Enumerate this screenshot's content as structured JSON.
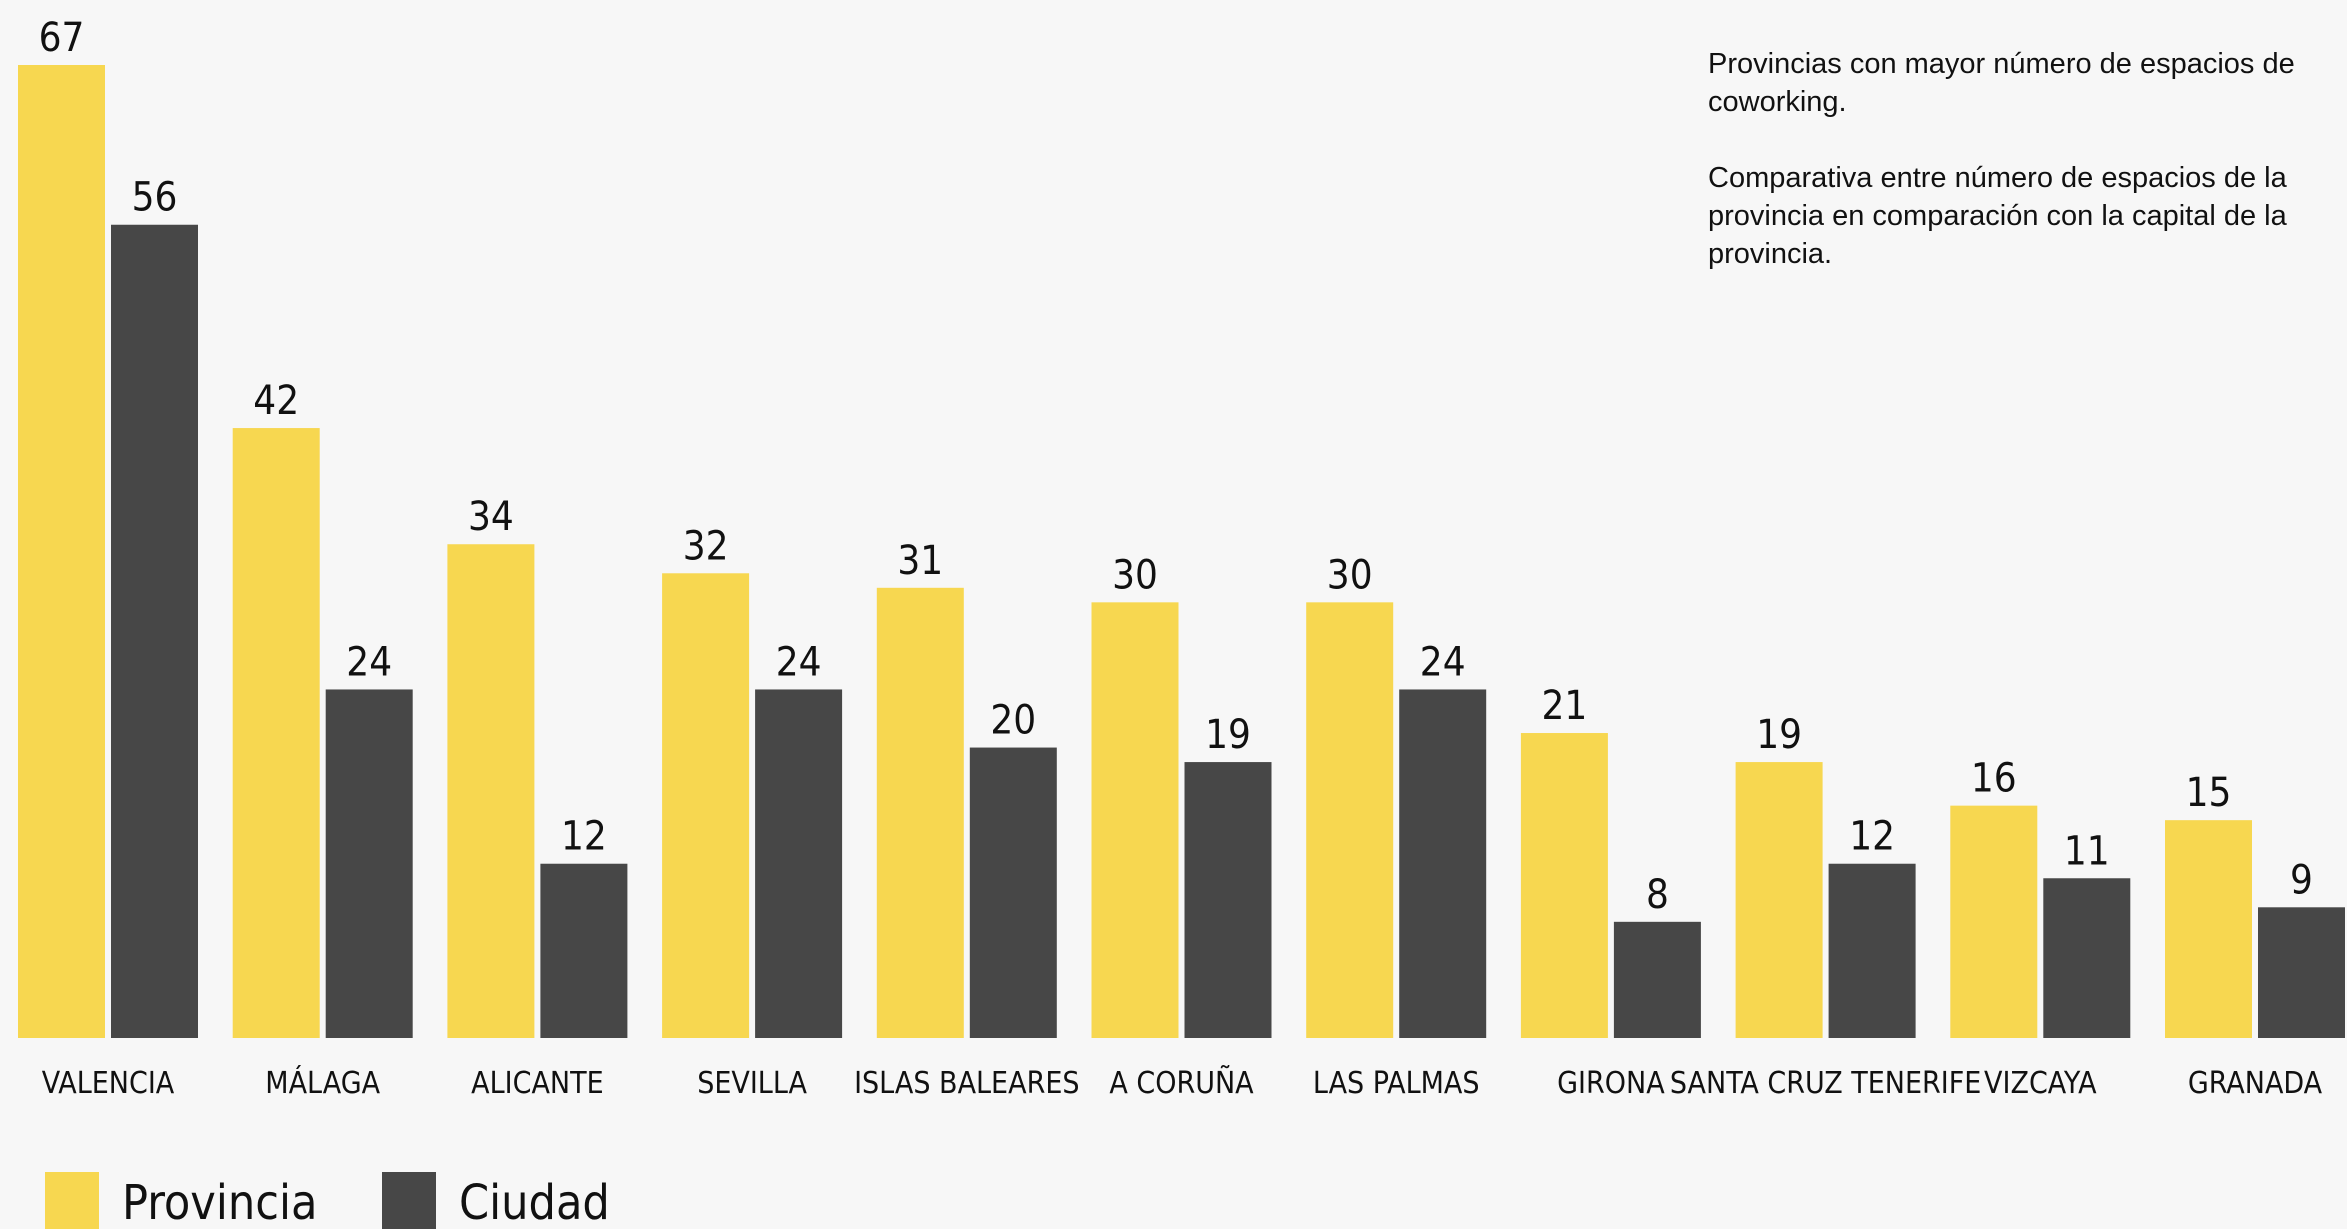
{
  "description": {
    "line1": "Provincias con mayor número de espacios de coworking.",
    "line2": "Comparativa entre número de espacios de la provincia en comparación con la capital de la provincia."
  },
  "chart_data": {
    "type": "bar",
    "categories": [
      "VALENCIA",
      "MÁLAGA",
      "ALICANTE",
      "SEVILLA",
      "ISLAS BALEARES",
      "A CORUÑA",
      "LAS PALMAS",
      "GIRONA",
      "SANTA CRUZ TENERIFE",
      "VIZCAYA",
      "GRANADA"
    ],
    "series": [
      {
        "name": "Provincia",
        "color": "#f7d750",
        "values": [
          67,
          42,
          34,
          32,
          31,
          30,
          30,
          21,
          19,
          16,
          15
        ]
      },
      {
        "name": "Ciudad",
        "color": "#474747",
        "values": [
          56,
          24,
          12,
          24,
          20,
          19,
          24,
          8,
          12,
          11,
          9
        ]
      }
    ],
    "ylim": [
      0,
      67
    ],
    "grid": false,
    "legend": "bottom-left",
    "data_labels": true
  }
}
